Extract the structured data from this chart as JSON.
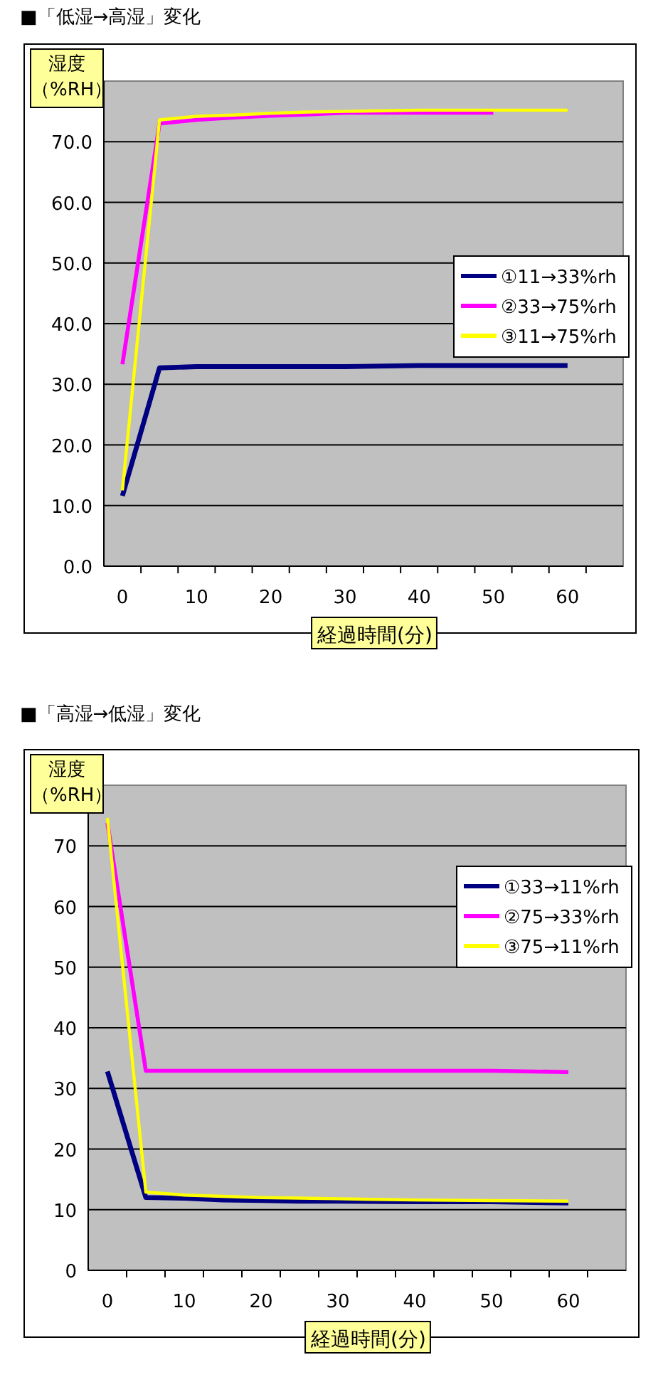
{
  "chart_data": [
    {
      "type": "line",
      "title": "■「低湿→高湿」変化",
      "xlabel": "経過時間(分)",
      "ylabel": "湿度（%RH）",
      "x": [
        0,
        5,
        10,
        15,
        20,
        25,
        30,
        40,
        50,
        60
      ],
      "series": [
        {
          "name": "①11→33%rh",
          "color": "#000080",
          "values": [
            11.6,
            32.7,
            32.9,
            32.9,
            32.9,
            32.9,
            32.9,
            33.1,
            33.1,
            33.1
          ]
        },
        {
          "name": "②33→75%rh",
          "color": "#ff00ff",
          "values": [
            33.3,
            73.0,
            73.6,
            74.0,
            74.3,
            74.5,
            74.8,
            74.8,
            74.8,
            null
          ]
        },
        {
          "name": "③11→75%rh",
          "color": "#ffff00",
          "values": [
            12.5,
            73.6,
            74.2,
            74.4,
            74.7,
            74.9,
            75.0,
            75.2,
            75.2,
            75.2
          ]
        }
      ],
      "xlim": [
        -2.5,
        67.5
      ],
      "ylim": [
        0,
        80
      ],
      "xticks": [
        0,
        10,
        20,
        30,
        40,
        50,
        60,
        {
          "value": 2.5,
          "label": null
        },
        {
          "value": 7.5,
          "label": null
        },
        {
          "value": 12.5,
          "label": null
        },
        {
          "value": 17.5,
          "label": null
        },
        {
          "value": 22.5,
          "label": null
        },
        {
          "value": 27.5,
          "label": null
        },
        {
          "value": 32.5,
          "label": null
        },
        {
          "value": 37.5,
          "label": null
        },
        {
          "value": 42.5,
          "label": null
        },
        {
          "value": 47.5,
          "label": null
        },
        {
          "value": 52.5,
          "label": null
        },
        {
          "value": 57.5,
          "label": null
        },
        {
          "value": 62.5,
          "label": null
        }
      ],
      "yticks": [
        {
          "value": 0,
          "label": "0.0"
        },
        {
          "value": 10,
          "label": "10.0"
        },
        {
          "value": 20,
          "label": "20.0"
        },
        {
          "value": 30,
          "label": "30.0"
        },
        {
          "value": 40,
          "label": "40.0"
        },
        {
          "value": 50,
          "label": "50.0"
        },
        {
          "value": 60,
          "label": "60.0"
        },
        {
          "value": 70,
          "label": "70.0"
        }
      ],
      "grid": "y",
      "legend": "right",
      "marker": "none",
      "line_style": "solid"
    },
    {
      "type": "line",
      "title": "■「高湿→低湿」変化",
      "xlabel": "経過時間(分)",
      "ylabel": "湿度（%RH）",
      "x": [
        0,
        5,
        10,
        15,
        20,
        25,
        30,
        40,
        50,
        60
      ],
      "series": [
        {
          "name": "①33→11%rh",
          "color": "#000080",
          "values": [
            32.8,
            12.0,
            11.9,
            11.6,
            11.5,
            11.4,
            11.4,
            11.3,
            11.3,
            11.1
          ]
        },
        {
          "name": "②75→33%rh",
          "color": "#ff00ff",
          "values": [
            73.8,
            32.9,
            32.9,
            32.9,
            32.9,
            32.9,
            32.9,
            32.9,
            32.9,
            32.7
          ]
        },
        {
          "name": "③75→11%rh",
          "color": "#ffff00",
          "values": [
            74.6,
            12.9,
            12.4,
            12.2,
            12.0,
            11.9,
            11.8,
            11.6,
            11.5,
            11.4
          ]
        }
      ],
      "xlim": [
        -2.5,
        67.5
      ],
      "ylim": [
        0,
        80
      ],
      "xticks": [
        0,
        10,
        20,
        30,
        40,
        50,
        60,
        {
          "value": 2.5,
          "label": null
        },
        {
          "value": 7.5,
          "label": null
        },
        {
          "value": 12.5,
          "label": null
        },
        {
          "value": 17.5,
          "label": null
        },
        {
          "value": 22.5,
          "label": null
        },
        {
          "value": 27.5,
          "label": null
        },
        {
          "value": 32.5,
          "label": null
        },
        {
          "value": 37.5,
          "label": null
        },
        {
          "value": 42.5,
          "label": null
        },
        {
          "value": 47.5,
          "label": null
        },
        {
          "value": 52.5,
          "label": null
        },
        {
          "value": 57.5,
          "label": null
        },
        {
          "value": 62.5,
          "label": null
        }
      ],
      "yticks": [
        0,
        10,
        20,
        30,
        40,
        50,
        60,
        70
      ],
      "grid": "y",
      "legend": "top right",
      "marker": "none",
      "line_style": "solid"
    }
  ]
}
